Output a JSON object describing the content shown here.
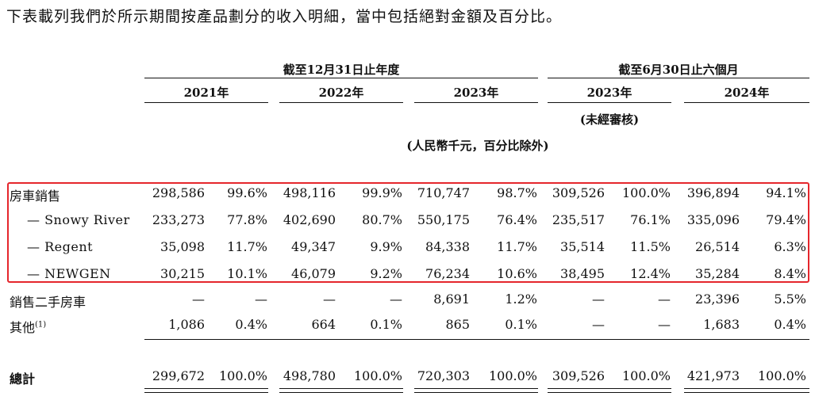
{
  "intro": "下表載列我們於所示期間按產品劃分的收入明細，當中包括絕對金額及百分比。",
  "header": {
    "group_year": "截至12月31日止年度",
    "group_half": "截至6月30日止六個月",
    "years": [
      "2021年",
      "2022年",
      "2023年",
      "2023年",
      "2024年"
    ],
    "unaudited": "(未經審核)",
    "unit": "(人民幣千元，百分比除外)"
  },
  "rows": [
    {
      "label": "房車銷售",
      "values": [
        "298,586",
        "99.6%",
        "498,116",
        "99.9%",
        "710,747",
        "98.7%",
        "309,526",
        "100.0%",
        "396,894",
        "94.1%"
      ]
    },
    {
      "label": "— Snowy River",
      "values": [
        "233,273",
        "77.8%",
        "402,690",
        "80.7%",
        "550,175",
        "76.4%",
        "235,517",
        "76.1%",
        "335,096",
        "79.4%"
      ]
    },
    {
      "label": "— Regent",
      "values": [
        "35,098",
        "11.7%",
        "49,347",
        "9.9%",
        "84,338",
        "11.7%",
        "35,514",
        "11.5%",
        "26,514",
        "6.3%"
      ]
    },
    {
      "label": "— NEWGEN",
      "values": [
        "30,215",
        "10.1%",
        "46,079",
        "9.2%",
        "76,234",
        "10.6%",
        "38,495",
        "12.4%",
        "35,284",
        "8.4%"
      ]
    },
    {
      "label": "銷售二手房車",
      "values": [
        "—",
        "—",
        "—",
        "—",
        "8,691",
        "1.2%",
        "—",
        "—",
        "23,396",
        "5.5%"
      ]
    },
    {
      "label": "其他",
      "footnote": "(1)",
      "values": [
        "1,086",
        "0.4%",
        "664",
        "0.1%",
        "865",
        "0.1%",
        "—",
        "—",
        "1,683",
        "0.4%"
      ]
    },
    {
      "label": "總計",
      "values": [
        "299,672",
        "100.0%",
        "498,780",
        "100.0%",
        "720,303",
        "100.0%",
        "309,526",
        "100.0%",
        "421,973",
        "100.0%"
      ]
    }
  ]
}
